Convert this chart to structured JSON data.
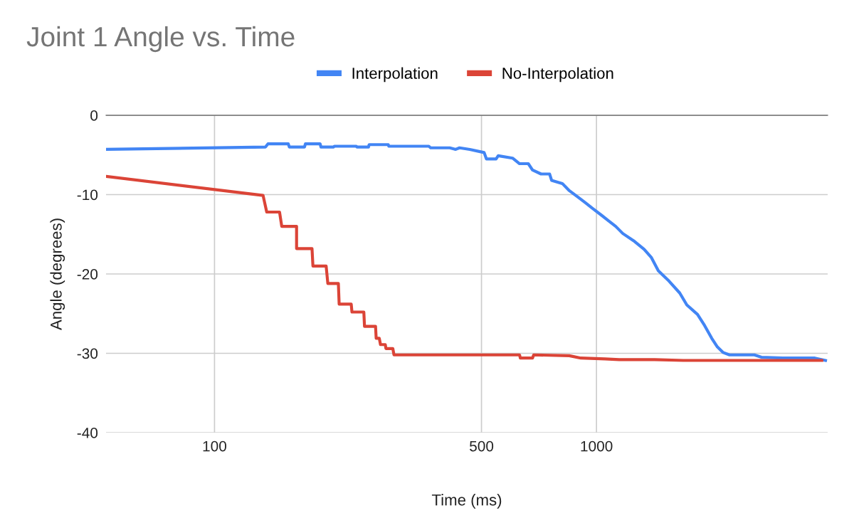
{
  "chart_data": {
    "type": "line",
    "title": "Joint 1 Angle vs. Time",
    "xlabel": "Time (ms)",
    "ylabel": "Angle (degrees)",
    "log": "x",
    "xlim": [
      52,
      4030
    ],
    "xticks": [
      100,
      500,
      1000
    ],
    "ylim": [
      -40,
      0
    ],
    "yticks": [
      -40,
      -30,
      -20,
      -10,
      0
    ],
    "grid": true,
    "legend": "top",
    "marker": "none",
    "line_style": "solid",
    "series": [
      {
        "name": "Interpolation",
        "color": "#4285f4",
        "x": [
          52,
          136,
          138,
          156,
          157,
          172,
          173,
          189,
          190,
          205,
          206,
          235,
          236,
          253,
          254,
          285,
          286,
          364,
          368,
          413,
          428,
          438,
          466,
          508,
          515,
          546,
          553,
          603,
          629,
          663,
          680,
          716,
          754,
          763,
          814,
          849,
          894,
          934,
          974,
          1031,
          1076,
          1123,
          1172,
          1250,
          1333,
          1391,
          1452,
          1549,
          1652,
          1724,
          1839,
          1919,
          2003,
          2073,
          2147,
          2230,
          2591,
          2704,
          3075,
          3730,
          3978
        ],
        "values": [
          -4.3,
          -4.0,
          -3.6,
          -3.6,
          -4.0,
          -4.0,
          -3.6,
          -3.6,
          -4.0,
          -4.0,
          -3.9,
          -3.9,
          -4.0,
          -4.0,
          -3.7,
          -3.7,
          -3.9,
          -3.9,
          -4.1,
          -4.1,
          -4.3,
          -4.1,
          -4.3,
          -4.7,
          -5.5,
          -5.5,
          -5.1,
          -5.4,
          -6.1,
          -6.1,
          -6.9,
          -7.4,
          -7.4,
          -8.2,
          -8.6,
          -9.5,
          -10.3,
          -11.0,
          -11.7,
          -12.6,
          -13.3,
          -14.0,
          -14.9,
          -15.8,
          -16.9,
          -17.9,
          -19.6,
          -20.9,
          -22.4,
          -23.9,
          -25.1,
          -26.5,
          -28.1,
          -29.2,
          -29.9,
          -30.2,
          -30.2,
          -30.5,
          -30.6,
          -30.6,
          -30.9
        ]
      },
      {
        "name": "No-Interpolation",
        "color": "#db4437",
        "x": [
          52,
          134,
          137,
          148,
          150,
          164,
          164,
          180,
          181,
          196,
          198,
          211,
          212,
          228,
          229,
          246,
          247,
          264,
          265,
          270,
          272,
          280,
          281,
          293,
          295,
          629,
          632,
          680,
          685,
          849,
          910,
          1053,
          1147,
          1421,
          1688,
          2591,
          3890
        ],
        "values": [
          -7.7,
          -10.1,
          -12.2,
          -12.2,
          -14.0,
          -14.0,
          -16.8,
          -16.8,
          -19.0,
          -19.0,
          -21.2,
          -21.2,
          -23.8,
          -23.8,
          -24.8,
          -24.8,
          -26.6,
          -26.6,
          -28.1,
          -28.1,
          -28.9,
          -28.9,
          -29.4,
          -29.4,
          -30.2,
          -30.2,
          -30.6,
          -30.6,
          -30.2,
          -30.3,
          -30.6,
          -30.7,
          -30.8,
          -30.8,
          -30.9,
          -30.9,
          -30.9
        ]
      }
    ]
  }
}
